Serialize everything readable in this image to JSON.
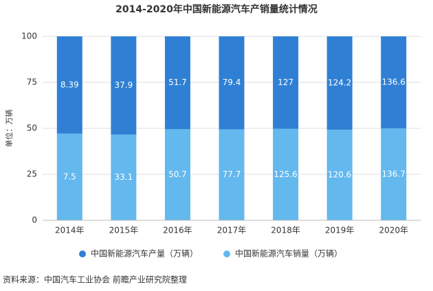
{
  "chart_data": {
    "type": "bar",
    "stack": "percent",
    "title": "2014-2020年中国新能源汽车产销量统计情况",
    "y_label": "单位：万辆",
    "source": "资料来源：中国汽车工业协会 前瞻产业研究院整理",
    "categories": [
      "2014年",
      "2015年",
      "2016年",
      "2017年",
      "2018年",
      "2019年",
      "2020年"
    ],
    "series": [
      {
        "name": "中国新能源汽车销量（万辆）",
        "color": "#63b8ee",
        "values": [
          7.5,
          33.1,
          50.7,
          77.7,
          125.6,
          120.6,
          136.7
        ]
      },
      {
        "name": "中国新能源汽车产量（万辆）",
        "color": "#2f80d4",
        "values": [
          8.39,
          37.9,
          51.7,
          79.4,
          127,
          124.2,
          136.6
        ]
      }
    ],
    "ylim": [
      0,
      100
    ],
    "yticks": [
      0,
      25,
      50,
      75,
      100
    ],
    "grid": true
  }
}
